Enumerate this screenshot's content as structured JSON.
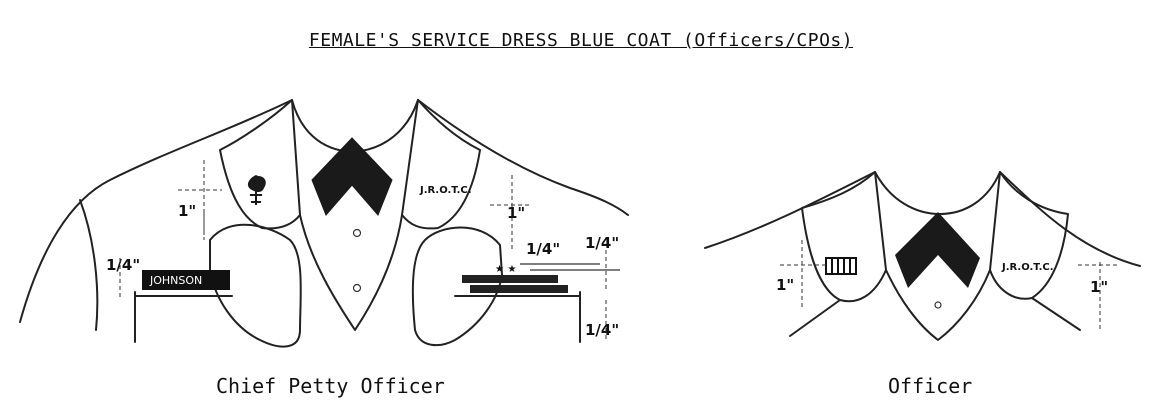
{
  "title": "FEMALE'S SERVICE DRESS BLUE COAT (Officers/CPOs)",
  "captions": {
    "cpo": "Chief Petty Officer",
    "officer": "Officer"
  },
  "cpo": {
    "nameplate": "JOHNSON",
    "collar_device_right": "J.R.O.T.C.",
    "measurements": {
      "left_vertical": "1\"",
      "left_outer": "1/4\"",
      "right_vertical": "1\"",
      "ribbon_gap": "1/4\"",
      "top_right": "1/4\"",
      "bottom_right": "1/4\""
    }
  },
  "officer": {
    "collar_device_right": "J.R.O.T.C.",
    "measurements": {
      "left": "1\"",
      "right": "1\""
    }
  },
  "colors": {
    "ink": "#222222",
    "background": "#ffffff"
  }
}
